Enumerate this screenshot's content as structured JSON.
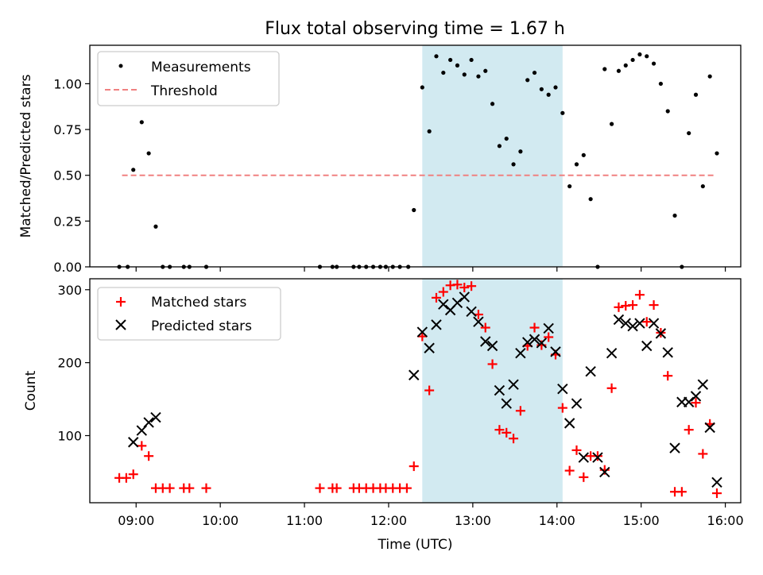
{
  "title": "Flux total observing time = 1.67 h",
  "colors": {
    "measurement": "#000000",
    "threshold": "#f08080",
    "matched": "#ff0000",
    "predicted": "#000000",
    "span": "#add8e6"
  },
  "chart_data": [
    {
      "type": "scatter",
      "ylabel": "Matched/Predicted stars",
      "ylim": [
        0,
        1.21
      ],
      "yticks": [
        0,
        0.25,
        0.5,
        0.75,
        1.0
      ],
      "ytick_labels": [
        "0.00",
        "0.25",
        "0.50",
        "0.75",
        "1.00"
      ],
      "legend": [
        "Measurements",
        "Threshold"
      ],
      "threshold": {
        "y": 0.5,
        "x_start": "08:50",
        "x_end": "15:53"
      },
      "highlight": {
        "x_start": "12:24",
        "x_end": "14:04"
      },
      "series": [
        {
          "name": "Measurements",
          "points": [
            [
              "08:48",
              0
            ],
            [
              "08:54",
              0
            ],
            [
              "08:58",
              0.53
            ],
            [
              "09:04",
              0.79
            ],
            [
              "09:09",
              0.62
            ],
            [
              "09:14",
              0.22
            ],
            [
              "09:19",
              0
            ],
            [
              "09:24",
              0
            ],
            [
              "09:34",
              0
            ],
            [
              "09:38",
              0
            ],
            [
              "09:50",
              0
            ],
            [
              "11:11",
              0
            ],
            [
              "11:20",
              0
            ],
            [
              "11:23",
              0
            ],
            [
              "11:35",
              0
            ],
            [
              "11:39",
              0
            ],
            [
              "11:44",
              0
            ],
            [
              "11:49",
              0
            ],
            [
              "11:54",
              0
            ],
            [
              "11:58",
              0
            ],
            [
              "12:03",
              0
            ],
            [
              "12:08",
              0
            ],
            [
              "12:14",
              0
            ],
            [
              "12:18",
              0.31
            ],
            [
              "12:24",
              0.98
            ],
            [
              "12:29",
              0.74
            ],
            [
              "12:34",
              1.15
            ],
            [
              "12:39",
              1.06
            ],
            [
              "12:44",
              1.13
            ],
            [
              "12:49",
              1.1
            ],
            [
              "12:54",
              1.05
            ],
            [
              "12:59",
              1.13
            ],
            [
              "13:04",
              1.04
            ],
            [
              "13:09",
              1.07
            ],
            [
              "13:14",
              0.89
            ],
            [
              "13:19",
              0.66
            ],
            [
              "13:24",
              0.7
            ],
            [
              "13:29",
              0.56
            ],
            [
              "13:34",
              0.63
            ],
            [
              "13:39",
              1.02
            ],
            [
              "13:44",
              1.06
            ],
            [
              "13:49",
              0.97
            ],
            [
              "13:54",
              0.94
            ],
            [
              "13:59",
              0.98
            ],
            [
              "14:04",
              0.84
            ],
            [
              "14:09",
              0.44
            ],
            [
              "14:14",
              0.56
            ],
            [
              "14:19",
              0.61
            ],
            [
              "14:24",
              0.37
            ],
            [
              "14:29",
              0
            ],
            [
              "14:34",
              1.08
            ],
            [
              "14:39",
              0.78
            ],
            [
              "14:44",
              1.07
            ],
            [
              "14:49",
              1.1
            ],
            [
              "14:54",
              1.13
            ],
            [
              "14:59",
              1.16
            ],
            [
              "15:04",
              1.15
            ],
            [
              "15:09",
              1.11
            ],
            [
              "15:14",
              1.0
            ],
            [
              "15:19",
              0.85
            ],
            [
              "15:24",
              0.28
            ],
            [
              "15:29",
              0
            ],
            [
              "15:34",
              0.73
            ],
            [
              "15:39",
              0.94
            ],
            [
              "15:44",
              0.44
            ],
            [
              "15:49",
              1.04
            ],
            [
              "15:54",
              0.62
            ]
          ]
        }
      ]
    },
    {
      "type": "scatter",
      "ylabel": "Count",
      "xlabel": "Time (UTC)",
      "ylim": [
        8,
        315
      ],
      "yticks": [
        100,
        200,
        300
      ],
      "ytick_labels": [
        "100",
        "200",
        "300"
      ],
      "xlim": [
        "08:27",
        "16:11"
      ],
      "xticks": [
        "09:00",
        "10:00",
        "11:00",
        "12:00",
        "13:00",
        "14:00",
        "15:00",
        "16:00"
      ],
      "legend": [
        "Matched stars",
        "Predicted stars"
      ],
      "highlight": {
        "x_start": "12:24",
        "x_end": "14:04"
      },
      "series": [
        {
          "name": "Matched stars",
          "points": [
            [
              "08:48",
              42
            ],
            [
              "08:53",
              42
            ],
            [
              "08:58",
              47
            ],
            [
              "09:04",
              86
            ],
            [
              "09:09",
              72
            ],
            [
              "09:14",
              28
            ],
            [
              "09:19",
              28
            ],
            [
              "09:24",
              28
            ],
            [
              "09:34",
              28
            ],
            [
              "09:38",
              28
            ],
            [
              "09:50",
              28
            ],
            [
              "11:11",
              28
            ],
            [
              "11:20",
              28
            ],
            [
              "11:23",
              28
            ],
            [
              "11:35",
              28
            ],
            [
              "11:39",
              28
            ],
            [
              "11:44",
              28
            ],
            [
              "11:49",
              28
            ],
            [
              "11:54",
              28
            ],
            [
              "11:58",
              28
            ],
            [
              "12:03",
              28
            ],
            [
              "12:08",
              28
            ],
            [
              "12:13",
              28
            ],
            [
              "12:18",
              58
            ],
            [
              "12:24",
              236
            ],
            [
              "12:29",
              162
            ],
            [
              "12:34",
              289
            ],
            [
              "12:39",
              297
            ],
            [
              "12:44",
              306
            ],
            [
              "12:49",
              307
            ],
            [
              "12:54",
              303
            ],
            [
              "12:59",
              305
            ],
            [
              "13:04",
              266
            ],
            [
              "13:09",
              248
            ],
            [
              "13:14",
              198
            ],
            [
              "13:19",
              108
            ],
            [
              "13:24",
              104
            ],
            [
              "13:29",
              96
            ],
            [
              "13:34",
              134
            ],
            [
              "13:39",
              223
            ],
            [
              "13:44",
              248
            ],
            [
              "13:49",
              224
            ],
            [
              "13:54",
              235
            ],
            [
              "13:59",
              211
            ],
            [
              "14:04",
              138
            ],
            [
              "14:09",
              52
            ],
            [
              "14:14",
              80
            ],
            [
              "14:19",
              43
            ],
            [
              "14:24",
              72
            ],
            [
              "14:29",
              72
            ],
            [
              "14:34",
              53
            ],
            [
              "14:39",
              165
            ],
            [
              "14:44",
              276
            ],
            [
              "14:49",
              278
            ],
            [
              "14:54",
              279
            ],
            [
              "14:59",
              293
            ],
            [
              "15:04",
              256
            ],
            [
              "15:09",
              279
            ],
            [
              "15:14",
              241
            ],
            [
              "15:19",
              182
            ],
            [
              "15:24",
              23
            ],
            [
              "15:29",
              23
            ],
            [
              "15:34",
              108
            ],
            [
              "15:39",
              145
            ],
            [
              "15:44",
              75
            ],
            [
              "15:49",
              116
            ],
            [
              "15:54",
              21
            ]
          ]
        },
        {
          "name": "Predicted stars",
          "points": [
            [
              "08:58",
              91
            ],
            [
              "09:04",
              107
            ],
            [
              "09:09",
              118
            ],
            [
              "09:14",
              125
            ],
            [
              "12:18",
              183
            ],
            [
              "12:24",
              242
            ],
            [
              "12:29",
              220
            ],
            [
              "12:34",
              252
            ],
            [
              "12:39",
              280
            ],
            [
              "12:44",
              272
            ],
            [
              "12:49",
              282
            ],
            [
              "12:54",
              290
            ],
            [
              "12:59",
              270
            ],
            [
              "13:04",
              256
            ],
            [
              "13:09",
              229
            ],
            [
              "13:14",
              223
            ],
            [
              "13:19",
              162
            ],
            [
              "13:24",
              144
            ],
            [
              "13:29",
              170
            ],
            [
              "13:34",
              213
            ],
            [
              "13:39",
              228
            ],
            [
              "13:44",
              232
            ],
            [
              "13:49",
              227
            ],
            [
              "13:54",
              247
            ],
            [
              "13:59",
              215
            ],
            [
              "14:04",
              164
            ],
            [
              "14:09",
              117
            ],
            [
              "14:14",
              144
            ],
            [
              "14:19",
              70
            ],
            [
              "14:24",
              188
            ],
            [
              "14:29",
              70
            ],
            [
              "14:34",
              50
            ],
            [
              "14:39",
              213
            ],
            [
              "14:44",
              259
            ],
            [
              "14:49",
              254
            ],
            [
              "14:54",
              250
            ],
            [
              "14:59",
              254
            ],
            [
              "15:04",
              223
            ],
            [
              "15:09",
              254
            ],
            [
              "15:14",
              240
            ],
            [
              "15:19",
              214
            ],
            [
              "15:24",
              83
            ],
            [
              "15:29",
              146
            ],
            [
              "15:34",
              146
            ],
            [
              "15:39",
              154
            ],
            [
              "15:44",
              170
            ],
            [
              "15:49",
              111
            ],
            [
              "15:54",
              36
            ]
          ]
        }
      ]
    }
  ]
}
